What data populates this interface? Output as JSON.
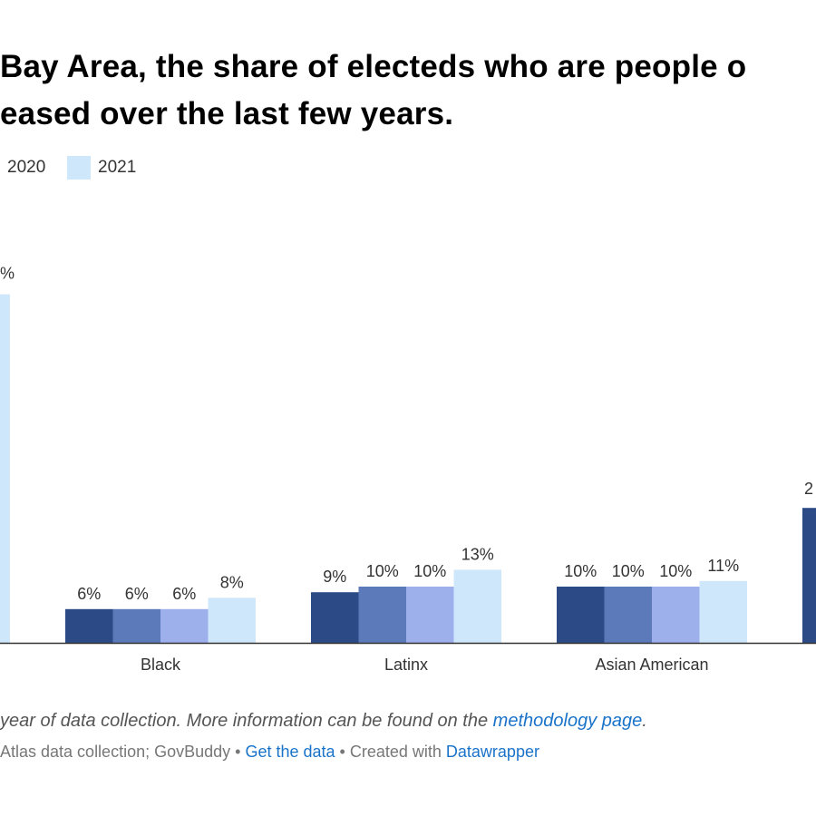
{
  "title": {
    "line1": "Bay Area, the share of electeds who are people o",
    "line2": "eased over the last few years."
  },
  "legend": [
    {
      "label": "2020",
      "color": "#9db0ec"
    },
    {
      "label": "2021",
      "color": "#cfe7fb"
    }
  ],
  "chart_data": {
    "type": "bar",
    "grouped": true,
    "categories": [
      "Black",
      "Latinx",
      "Asian American"
    ],
    "series": [
      {
        "color": "#2c4a86",
        "values": [
          6,
          9,
          10
        ]
      },
      {
        "color": "#5c79b9",
        "values": [
          6,
          10,
          10
        ]
      },
      {
        "name": "2020",
        "color": "#9db0ec",
        "values": [
          6,
          10,
          10
        ]
      },
      {
        "name": "2021",
        "color": "#cfe7fb",
        "values": [
          8,
          13,
          11
        ]
      }
    ],
    "value_suffix": "%",
    "partial_left": {
      "value_label": "%",
      "color": "#cfe7fb",
      "approx_value": 62
    },
    "partial_right": {
      "value_label": "2",
      "color": "#2c4a86",
      "approx_value": 24
    },
    "ylim": [
      0,
      70
    ],
    "grid": false,
    "legend_position": "top-left"
  },
  "note": {
    "text": "year of data collection. More information can be found on the ",
    "link": "methodology page",
    "end": "."
  },
  "source": {
    "text": "Atlas data collection; GovBuddy",
    "sep1": " • ",
    "get_data": "Get the data",
    "sep2": " • Created with ",
    "datawrapper": "Datawrapper"
  }
}
